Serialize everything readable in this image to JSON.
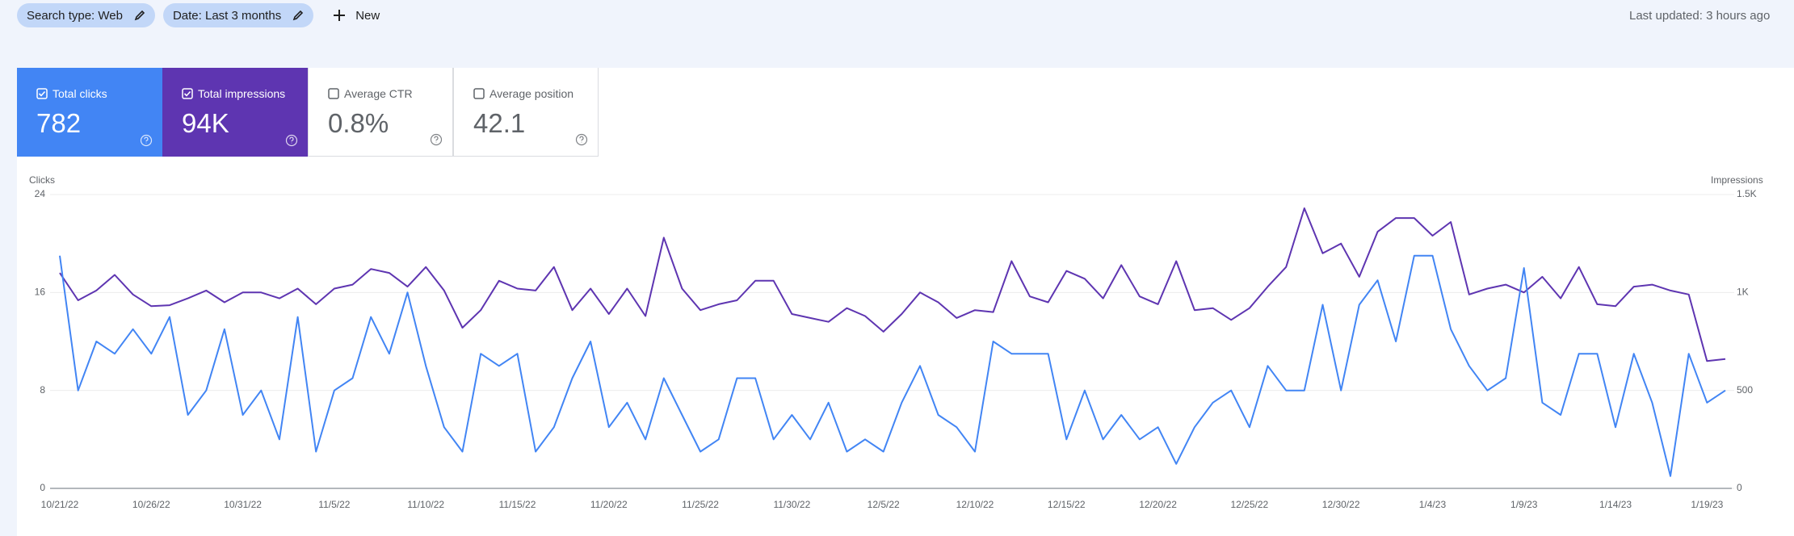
{
  "filters": [
    {
      "label": "Search type: Web"
    },
    {
      "label": "Date: Last 3 months"
    }
  ],
  "new_button": "New",
  "last_updated": "Last updated: 3 hours ago",
  "metrics": [
    {
      "label": "Total clicks",
      "value": "782",
      "checked": true,
      "color": "#4285f4"
    },
    {
      "label": "Total impressions",
      "value": "94K",
      "checked": true,
      "color": "#5e35b1"
    },
    {
      "label": "Average CTR",
      "value": "0.8%",
      "checked": false,
      "color": "#ffffff"
    },
    {
      "label": "Average position",
      "value": "42.1",
      "checked": false,
      "color": "#ffffff"
    }
  ],
  "chart_data": {
    "type": "line",
    "categories": [
      "10/21/22",
      null,
      null,
      null,
      null,
      "10/26/22",
      null,
      null,
      null,
      null,
      "10/31/22",
      null,
      null,
      null,
      null,
      "11/5/22",
      null,
      null,
      null,
      null,
      "11/10/22",
      null,
      null,
      null,
      null,
      "11/15/22",
      null,
      null,
      null,
      null,
      "11/20/22",
      null,
      null,
      null,
      null,
      "11/25/22",
      null,
      null,
      null,
      null,
      "11/30/22",
      null,
      null,
      null,
      null,
      "12/5/22",
      null,
      null,
      null,
      null,
      "12/10/22",
      null,
      null,
      null,
      null,
      "12/15/22",
      null,
      null,
      null,
      null,
      "12/20/22",
      null,
      null,
      null,
      null,
      "12/25/22",
      null,
      null,
      null,
      null,
      "12/30/22",
      null,
      null,
      null,
      null,
      "1/4/23",
      null,
      null,
      null,
      null,
      "1/9/23",
      null,
      null,
      null,
      null,
      "1/14/23",
      null,
      null,
      null,
      null,
      "1/19/23",
      null
    ],
    "series": [
      {
        "name": "Clicks",
        "color": "#4285f4",
        "values": [
          19,
          8,
          12,
          11,
          13,
          11,
          14,
          6,
          8,
          13,
          6,
          8,
          4,
          14,
          3,
          8,
          9,
          14,
          11,
          16,
          10,
          5,
          3,
          11,
          10,
          11,
          3,
          5,
          9,
          12,
          5,
          7,
          4,
          9,
          6,
          3,
          4,
          9,
          9,
          4,
          6,
          4,
          7,
          3,
          4,
          3,
          7,
          10,
          6,
          5,
          3,
          12,
          11,
          11,
          11,
          4,
          8,
          4,
          6,
          4,
          5,
          2,
          5,
          7,
          8,
          5,
          10,
          8,
          8,
          15,
          8,
          15,
          17,
          12,
          19,
          19,
          13,
          10,
          8,
          9,
          18,
          7,
          6,
          11,
          11,
          5,
          11,
          7,
          1,
          11,
          7,
          8
        ]
      },
      {
        "name": "Impressions",
        "color": "#5e35b1",
        "axis": "y2",
        "values": [
          1100,
          960,
          1010,
          1090,
          990,
          930,
          935,
          970,
          1010,
          950,
          1000,
          1000,
          970,
          1020,
          940,
          1020,
          1040,
          1120,
          1100,
          1030,
          1130,
          1010,
          820,
          910,
          1060,
          1020,
          1010,
          1130,
          910,
          1020,
          890,
          1020,
          880,
          1280,
          1020,
          910,
          940,
          960,
          1060,
          1060,
          890,
          870,
          850,
          920,
          880,
          800,
          890,
          1000,
          950,
          870,
          910,
          900,
          1160,
          980,
          950,
          1110,
          1070,
          970,
          1140,
          980,
          940,
          1160,
          910,
          920,
          860,
          920,
          1030,
          1130,
          1430,
          1200,
          1250,
          1080,
          1310,
          1380,
          1380,
          1290,
          1360,
          990,
          1020,
          1040,
          1000,
          1080,
          970,
          1130,
          940,
          930,
          1030,
          1040,
          1010,
          990,
          650,
          660
        ]
      }
    ],
    "ylim": [
      0,
      24
    ],
    "yticks": [
      0,
      8,
      16,
      24
    ],
    "y2lim": [
      0,
      1500
    ],
    "y2ticks": [
      0,
      500,
      {
        "value": 1000,
        "label": "1K"
      },
      {
        "value": 1500,
        "label": "1.5K"
      }
    ],
    "grid": true
  }
}
